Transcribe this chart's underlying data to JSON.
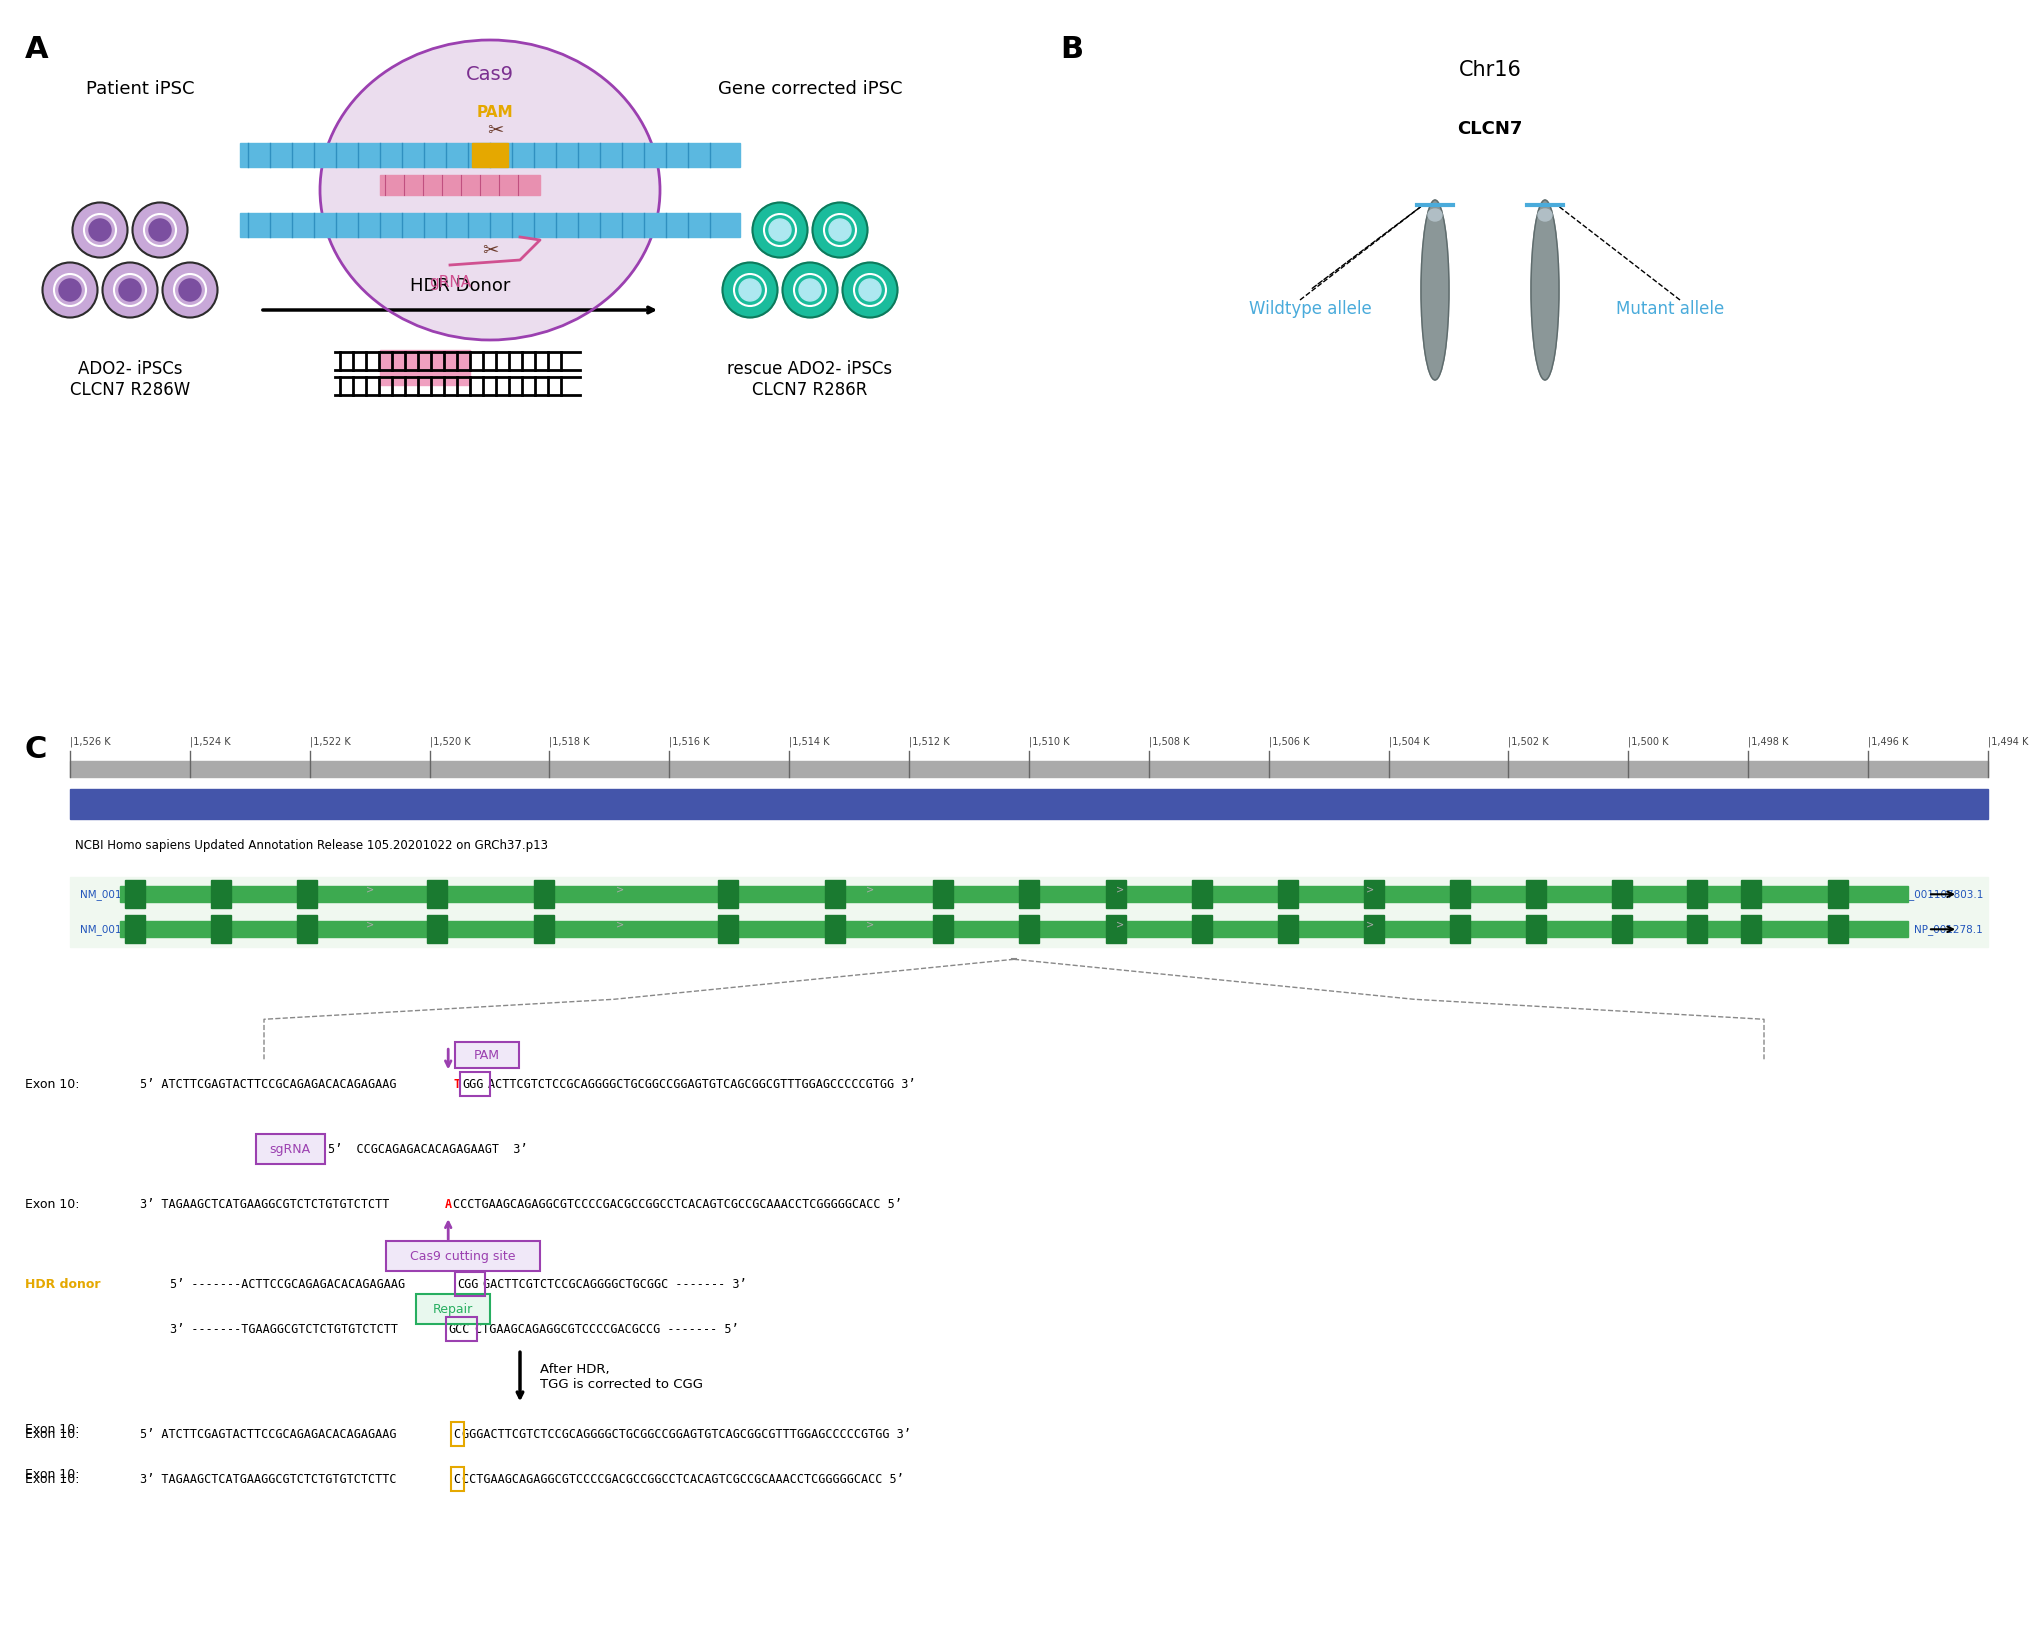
{
  "panel_A_label": "A",
  "panel_B_label": "B",
  "panel_C_label": "C",
  "cas9_label": "Cas9",
  "pam_label": "PAM",
  "grna_label": "gRNA",
  "patient_ipsc_label": "Patient iPSC",
  "gene_corrected_label": "Gene corrected iPSC",
  "hdr_donor_label": "HDR Donor",
  "ado2_ipsc_label": "ADO2- iPSCs\nCLCN7 R286W",
  "rescue_ado2_label": "rescue ADO2- iPSCs\nCLCN7 R286R",
  "chr16_label": "Chr16",
  "clcn7_label": "CLCN7",
  "wildtype_allele_label": "Wildtype allele",
  "mutant_allele_label": "Mutant allele",
  "genome_browser_label": "NCBI Homo sapiens Updated Annotation Release 105.20201022 on GRCh37.p13",
  "nm1_label": "NM_001114331.3",
  "nm2_label": "NM_001287.6",
  "np1_label": "NP_001107803.1",
  "np2_label": "NP_001278.1",
  "ruler_ticks": [
    "1,526 K",
    "1,524 K",
    "1,522 K",
    "1,520 K",
    "1,518 K",
    "1,516 K",
    "1,514 K",
    "1,512 K",
    "1,510 K",
    "1,508 K",
    "1,506 K",
    "1,504 K",
    "1,502 K",
    "1,500 K",
    "1,498 K",
    "1,496 K",
    "1,494 K"
  ],
  "exon10_top_seq": "5’ ATCTTCGAGTACTTCCGCAGAGACACAGAGAAG",
  "exon10_top_seq_red": "T",
  "exon10_top_seq_mid": "GGG",
  "exon10_top_seq_pam": "GGG",
  "exon10_top_seq_end": "ACTTCGTCTCCGCAGGGGCTGCGGCCGGAGTGTCAGCGGCGTTTGGAGCCCCCGTGG 3’",
  "exon10_bot_seq": "3’ TAGAAGCTCATGAAGGCGTCTCTGTGTCTCTT",
  "exon10_bot_seq_red": "A",
  "exon10_bot_seq_end": "CCCTGAAGCAGAGGCGTCCCCGACGCCGGCCTCACAGTCGCCGCAAACCTCGGGGGCACC 5’",
  "sgrna_label": "sgRNA",
  "sgrna_seq": "5’  CCGCAGAGACACAGAGAAGT  3’",
  "cas9_cutting_label": "Cas9 cutting site",
  "repair_label": "Repair",
  "hdr_donor_seq_top": "5’ -------ACTTCCGCAGAGACACAGAGAAG",
  "hdr_donor_seq_top_box": "CGG",
  "hdr_donor_seq_top_end": "GACTTCGTCTCCGCAGGGGCTGCGGC ------- 3’",
  "hdr_donor_seq_bot": "3’ -------TGAAGGCGTCTCTGTGTCTCTT",
  "hdr_donor_seq_bot_box": "GCC",
  "hdr_donor_seq_bot_end": "CTGAAGCAGAGGCGTCCCCGACGCCG ------- 5’",
  "after_hdr_label": "After HDR,\nTGG is corrected to CGG",
  "corrected_top_seq": "5’ ATCTTCGAGTACTTCCGCAGAGACACAGAGAAG",
  "corrected_top_box": "C",
  "corrected_top_end": "GGGACTTCGTCTCCGCAGGGGCTGCGGCCGGAGTGTCAGCGGCGTTTGGAGCCCCCGTGG 3’",
  "corrected_bot_seq": "3’ TAGAAGCTCATGAAGGCGTCTCTGTGTCTCTTC",
  "corrected_bot_box": "C",
  "corrected_bot_end": "CCTGAAGCAGAGGCGTCCCCGACGCCGGCCTCACAGTCGCCGCAAACCTCGGGGGCACC 5’",
  "exon10_label1": "Exon 10:",
  "exon10_label2": "Exon 10:",
  "exon10_label3": "Exon 10:",
  "exon10_label4": "Exon 10:",
  "hdr_donor_text": "HDR donor",
  "color_blue": "#4AABDB",
  "color_purple": "#9B59B6",
  "color_orange": "#E5A800",
  "color_green": "#27AE60",
  "color_dark_green": "#1a7a3a",
  "color_gray": "#7F8C8D",
  "color_navy": "#2C3E7A",
  "color_pink": "#E8A0C0",
  "color_light_purple": "#D8C4E8",
  "color_red": "#E74C3C",
  "color_teal": "#1ABC9C",
  "color_dark_teal": "#0E8C6E"
}
